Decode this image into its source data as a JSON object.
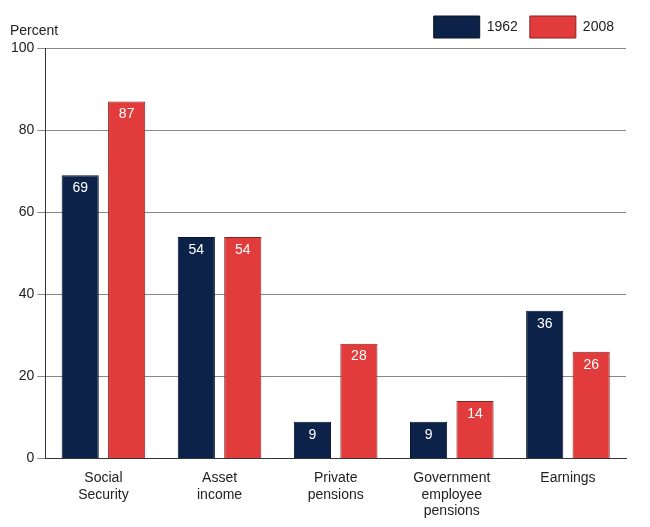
{
  "chart_data": {
    "type": "bar",
    "y_label": "Percent",
    "categories": [
      "Social Security",
      "Asset income",
      "Private pensions",
      "Government employee pensions",
      "Earnings"
    ],
    "series": [
      {
        "name": "1962",
        "color": "#0c2249",
        "values": [
          69,
          54,
          9,
          9,
          36
        ]
      },
      {
        "name": "2008",
        "color": "#e23b3b",
        "values": [
          87,
          54,
          28,
          14,
          26
        ]
      }
    ],
    "ylim": [
      0,
      100
    ],
    "yticks": [
      0,
      20,
      40,
      60,
      80,
      100
    ],
    "grid": true,
    "legend": "top-right",
    "data_labels": true
  }
}
